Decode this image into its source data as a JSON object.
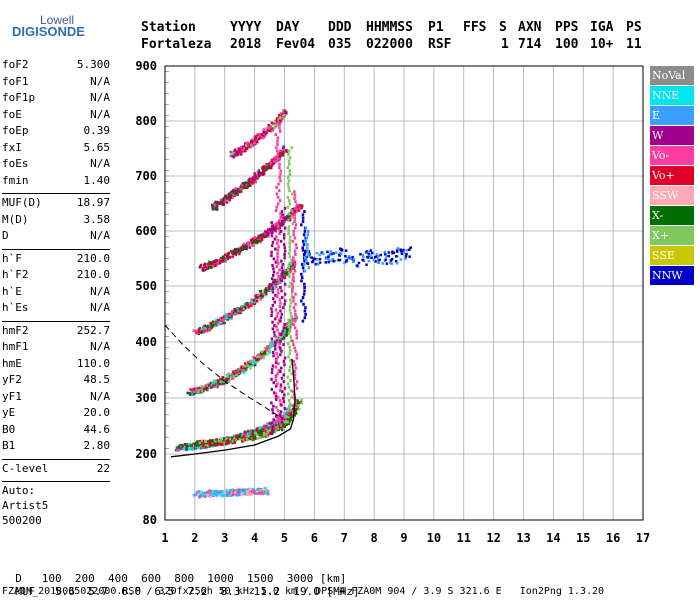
{
  "logo": {
    "top": "Lowell",
    "main": "DIGISONDE"
  },
  "header": {
    "labels": [
      "Station",
      "YYYY",
      "DAY",
      "DDD",
      "HHMMSS",
      "P1",
      "FFS",
      "S",
      "AXN",
      "PPS",
      "IGA",
      "PS"
    ],
    "values": [
      "Fortaleza",
      "2018",
      "Fev04",
      "035",
      "022000",
      "RSF",
      "",
      "1",
      "714",
      "100",
      "10+",
      "11"
    ]
  },
  "params": {
    "group1": [
      [
        "foF2",
        "5.300"
      ],
      [
        "foF1",
        "N/A"
      ],
      [
        "foF1p",
        "N/A"
      ],
      [
        "foE",
        "N/A"
      ],
      [
        "foEp",
        "0.39"
      ],
      [
        "fxI",
        "5.65"
      ],
      [
        "foEs",
        "N/A"
      ],
      [
        "fmin",
        "1.40"
      ]
    ],
    "group2": [
      [
        "MUF(D)",
        "18.97"
      ],
      [
        "M(D)",
        "3.58"
      ],
      [
        "D",
        "N/A"
      ]
    ],
    "group3": [
      [
        "h`F",
        "210.0"
      ],
      [
        "h`F2",
        "210.0"
      ],
      [
        "h`E",
        "N/A"
      ],
      [
        "h`Es",
        "N/A"
      ]
    ],
    "group4": [
      [
        "hmF2",
        "252.7"
      ],
      [
        "hmF1",
        "N/A"
      ],
      [
        "hmE",
        "110.0"
      ],
      [
        "yF2",
        "48.5"
      ],
      [
        "yF1",
        "N/A"
      ],
      [
        "yE",
        "20.0"
      ],
      [
        "B0",
        "44.6"
      ],
      [
        "B1",
        "2.80"
      ]
    ],
    "group5": [
      [
        "C-level",
        "22"
      ]
    ],
    "auto": [
      "Auto:",
      "Artist5",
      "500200"
    ]
  },
  "legend": [
    {
      "label": "NoVal",
      "color": "#8c8c8c"
    },
    {
      "label": "NNE",
      "color": "#00e5ee"
    },
    {
      "label": "E",
      "color": "#3aa0ff"
    },
    {
      "label": "W",
      "color": "#a0008c"
    },
    {
      "label": "Vo-",
      "color": "#ff3ca0"
    },
    {
      "label": "Vo+",
      "color": "#e0002a"
    },
    {
      "label": "SSW",
      "color": "#ffaab4"
    },
    {
      "label": "X-",
      "color": "#006e00"
    },
    {
      "label": "X+",
      "color": "#7ec860"
    },
    {
      "label": "SSE",
      "color": "#c8c800"
    },
    {
      "label": "NNW",
      "color": "#0000c8"
    }
  ],
  "footer": {
    "d_label": "D",
    "d_values": [
      "100",
      "200",
      "400",
      "600",
      "800",
      "1000",
      "1500",
      "3000"
    ],
    "d_unit": "[km]",
    "muf_label": "MUF",
    "muf_values": [
      "5.6",
      "5.7",
      "6.0",
      "6.5",
      "7.2",
      "8.3",
      "11.2",
      "19.0"
    ],
    "muf_unit": "[MHz]",
    "file_line": "FZA0M_2018035022000.RSF / 320fx256h 50 kHz 5.0 km / DPS-4 FZA0M 904 / 3.9 S 321.6 E   Ion2Png 1.3.20"
  },
  "chart_data": {
    "type": "scatter",
    "xlim": [
      1,
      17
    ],
    "ylim": [
      80,
      900
    ],
    "x_ticks": [
      1,
      2,
      3,
      4,
      5,
      6,
      7,
      8,
      9,
      10,
      11,
      12,
      13,
      14,
      15,
      16,
      17
    ],
    "y_ticks": [
      80,
      200,
      300,
      400,
      500,
      600,
      700,
      800,
      900
    ],
    "grid": true,
    "traces": [
      {
        "name": "F2 O-trace 1st hop",
        "x": [
          1.4,
          1.8,
          2.2,
          2.6,
          3.0,
          3.4,
          3.8,
          4.2,
          4.6,
          5.0,
          5.2
        ],
        "y": [
          213,
          215,
          218,
          221,
          226,
          232,
          238,
          245,
          255,
          268,
          285
        ]
      },
      {
        "name": "F2 X-trace 1st hop",
        "x": [
          2.0,
          2.6,
          3.2,
          3.8,
          4.4,
          4.8,
          5.2,
          5.5
        ],
        "y": [
          220,
          222,
          226,
          232,
          240,
          250,
          268,
          300
        ]
      },
      {
        "name": "F2 2nd hop",
        "x": [
          1.8,
          2.2,
          2.6,
          3.0,
          3.4,
          3.8,
          4.2,
          4.6,
          5.0,
          5.3
        ],
        "y": [
          312,
          318,
          326,
          335,
          348,
          362,
          378,
          398,
          420,
          445
        ]
      },
      {
        "name": "F2 3rd hop",
        "x": [
          2.0,
          2.5,
          3.0,
          3.5,
          4.0,
          4.5,
          5.0,
          5.3
        ],
        "y": [
          420,
          430,
          445,
          460,
          478,
          500,
          525,
          545
        ]
      },
      {
        "name": "F2 4th hop",
        "x": [
          2.2,
          2.7,
          3.2,
          3.7,
          4.2,
          4.7,
          5.2,
          5.5
        ],
        "y": [
          535,
          545,
          560,
          575,
          592,
          610,
          632,
          650
        ]
      },
      {
        "name": "F2 5th hop",
        "x": [
          2.6,
          3.0,
          3.4,
          3.8,
          4.2,
          4.6,
          5.0
        ],
        "y": [
          645,
          660,
          675,
          690,
          710,
          730,
          752
        ]
      },
      {
        "name": "F2 6th hop",
        "x": [
          3.2,
          3.6,
          4.0,
          4.4,
          4.8,
          5.0
        ],
        "y": [
          740,
          752,
          768,
          785,
          805,
          818
        ]
      },
      {
        "name": "Es traces",
        "x": [
          2.0,
          2.4,
          2.8,
          3.2,
          3.6,
          4.0,
          4.4
        ],
        "y": [
          128,
          130,
          131,
          132,
          133,
          134,
          135
        ]
      },
      {
        "name": "Oblique NNW echoes",
        "x": [
          5.6,
          6.2,
          6.8,
          7.4,
          8.0,
          8.6,
          9.2
        ],
        "y": [
          555,
          552,
          560,
          548,
          556,
          553,
          565
        ]
      }
    ],
    "profile": {
      "x": [
        1.2,
        2.0,
        3.0,
        4.0,
        4.8,
        5.2,
        5.3,
        5.35,
        5.3,
        5.25
      ],
      "y": [
        195,
        200,
        207,
        216,
        232,
        245,
        262,
        300,
        340,
        370
      ]
    },
    "dashed": {
      "x": [
        1.0,
        1.6,
        2.3,
        3.0,
        3.7,
        4.3,
        4.8
      ],
      "y": [
        430,
        395,
        360,
        330,
        305,
        285,
        268
      ]
    }
  }
}
